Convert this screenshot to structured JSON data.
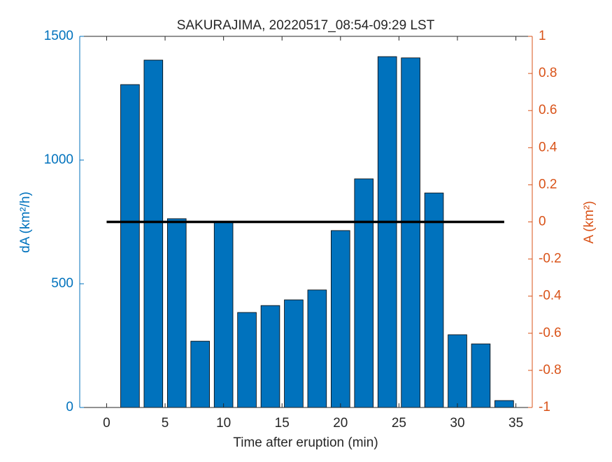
{
  "chart_data": {
    "type": "bar",
    "title": "SAKURAJIMA, 20220517_08:54-09:29 LST",
    "xlabel": "Time after eruption (min)",
    "ylabel": "dA (km²/h)",
    "y2label": "A (km²)",
    "x": [
      0,
      2,
      4,
      6,
      8,
      10,
      12,
      14,
      16,
      18,
      20,
      22,
      24,
      26,
      28,
      30,
      32,
      34
    ],
    "series": [
      {
        "type": "bar",
        "color": "#0072bd",
        "values": [
          0,
          1305,
          1404,
          763,
          268,
          749,
          384,
          412,
          435,
          475,
          715,
          924,
          1418,
          1413,
          867,
          294,
          257,
          28
        ]
      },
      {
        "type": "line",
        "axis": "y2",
        "color": "#000000",
        "x": [
          0,
          34
        ],
        "values": [
          0,
          0
        ]
      }
    ],
    "xlim": [
      -2.3,
      36.4
    ],
    "xticks": [
      0,
      5,
      10,
      15,
      20,
      25,
      30,
      35
    ],
    "ylim": [
      0,
      1500
    ],
    "yticks": [
      0,
      500,
      1000,
      1500
    ],
    "y2lim": [
      -1,
      1
    ],
    "y2ticks": [
      -1,
      -0.8,
      -0.6,
      -0.4,
      -0.2,
      0,
      0.2,
      0.4,
      0.6,
      0.8,
      1
    ],
    "ycolor": "#0072bd",
    "y2color": "#d95319"
  }
}
